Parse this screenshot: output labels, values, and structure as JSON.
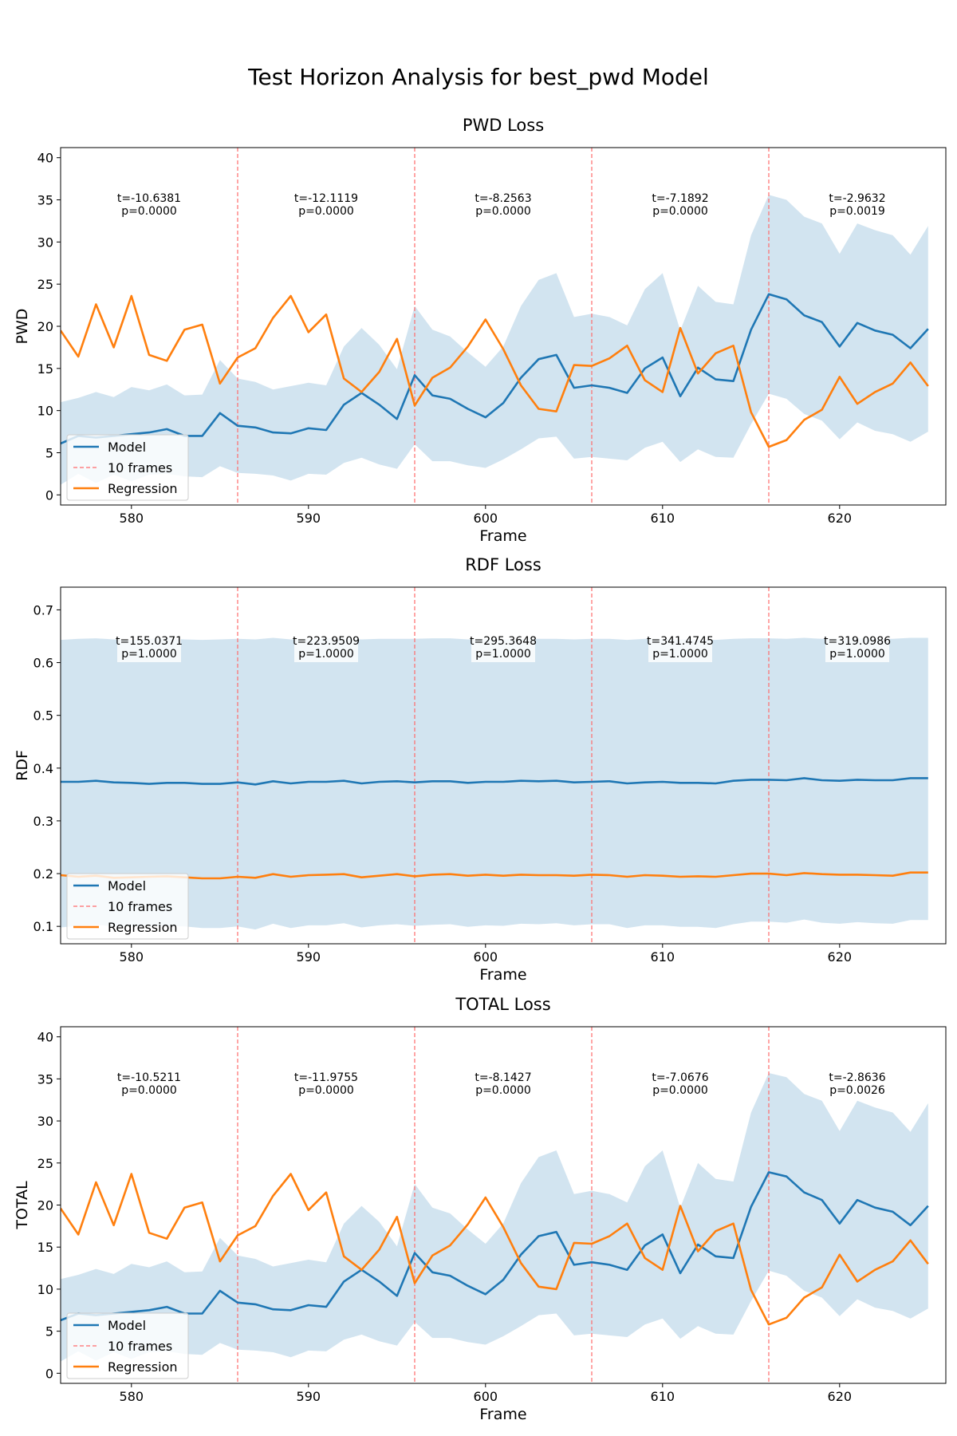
{
  "suptitle": "Test Horizon Analysis for best_pwd Model",
  "colors": {
    "model": "#1f77b4",
    "regression": "#ff7f0e",
    "band": "#1f77b4",
    "vline": "#ff6b6b"
  },
  "chart_data": [
    {
      "type": "line",
      "title": "PWD Loss",
      "xlabel": "Frame",
      "ylabel": "PWD",
      "xlim": [
        576,
        626
      ],
      "ylim": [
        -1.2,
        41.2
      ],
      "xticks": [
        580,
        590,
        600,
        610,
        620
      ],
      "yticks": [
        0,
        5,
        10,
        15,
        20,
        25,
        30,
        35,
        40
      ],
      "ytick_labels": [
        "0",
        "5",
        "10",
        "15",
        "20",
        "25",
        "30",
        "35",
        "40"
      ],
      "legend": [
        "Model",
        "10 frames",
        "Regression"
      ],
      "legend_loc": "lower left",
      "vlines": [
        586,
        596,
        606,
        616
      ],
      "annotations": [
        {
          "x": 581,
          "y": 34.2,
          "text": [
            "t=-10.6381",
            "p=0.0000"
          ]
        },
        {
          "x": 591,
          "y": 34.2,
          "text": [
            "t=-12.1119",
            "p=0.0000"
          ]
        },
        {
          "x": 601,
          "y": 34.2,
          "text": [
            "t=-8.2563",
            "p=0.0000"
          ]
        },
        {
          "x": 611,
          "y": 34.2,
          "text": [
            "t=-7.1892",
            "p=0.0000"
          ]
        },
        {
          "x": 621,
          "y": 34.2,
          "text": [
            "t=-2.9632",
            "p=0.0019"
          ]
        }
      ],
      "x": [
        576,
        577,
        578,
        579,
        580,
        581,
        582,
        583,
        584,
        585,
        586,
        587,
        588,
        589,
        590,
        591,
        592,
        593,
        594,
        595,
        596,
        597,
        598,
        599,
        600,
        601,
        602,
        603,
        604,
        605,
        606,
        607,
        608,
        609,
        610,
        611,
        612,
        613,
        614,
        615,
        616,
        617,
        618,
        619,
        620,
        621,
        622,
        623,
        624,
        625
      ],
      "series": [
        {
          "name": "Model",
          "values": [
            6.1,
            7.0,
            6.8,
            7.0,
            7.2,
            7.4,
            7.8,
            7.0,
            7.0,
            9.7,
            8.2,
            8.0,
            7.4,
            7.3,
            7.9,
            7.7,
            10.7,
            12.1,
            10.7,
            9.0,
            14.2,
            11.8,
            11.4,
            10.2,
            9.2,
            10.9,
            13.9,
            16.1,
            16.6,
            12.7,
            13.0,
            12.7,
            12.1,
            15.0,
            16.3,
            11.7,
            15.1,
            13.7,
            13.5,
            19.6,
            23.8,
            23.2,
            21.3,
            20.5,
            17.6,
            20.4,
            19.5,
            19.0,
            17.4,
            19.7
          ]
        },
        {
          "name": "Regression",
          "values": [
            19.5,
            16.4,
            22.6,
            17.5,
            23.6,
            16.6,
            15.9,
            19.6,
            20.2,
            13.2,
            16.3,
            17.4,
            21.0,
            23.6,
            19.3,
            21.4,
            13.8,
            12.2,
            14.6,
            18.5,
            10.6,
            13.9,
            15.1,
            17.6,
            20.8,
            17.3,
            13.0,
            10.2,
            9.9,
            15.4,
            15.3,
            16.2,
            17.7,
            13.6,
            12.2,
            19.8,
            14.4,
            16.8,
            17.7,
            9.8,
            5.7,
            6.5,
            8.9,
            10.1,
            14.0,
            10.8,
            12.2,
            13.2,
            15.7,
            12.9
          ]
        },
        {
          "name": "band_upper",
          "values": [
            11.0,
            11.5,
            12.2,
            11.6,
            12.8,
            12.4,
            13.1,
            11.8,
            11.9,
            16.0,
            13.8,
            13.4,
            12.5,
            12.9,
            13.3,
            13.0,
            17.6,
            19.8,
            17.8,
            14.9,
            22.4,
            19.6,
            18.8,
            16.9,
            15.2,
            17.6,
            22.4,
            25.5,
            26.3,
            21.1,
            21.5,
            21.1,
            20.1,
            24.4,
            26.3,
            19.5,
            24.8,
            22.9,
            22.6,
            30.8,
            35.6,
            35.0,
            33.0,
            32.2,
            28.6,
            32.2,
            31.4,
            30.8,
            28.5,
            31.9
          ]
        },
        {
          "name": "band_lower",
          "values": [
            1.2,
            2.5,
            1.4,
            2.4,
            1.6,
            2.4,
            2.5,
            2.2,
            2.1,
            3.4,
            2.6,
            2.5,
            2.3,
            1.7,
            2.5,
            2.4,
            3.8,
            4.4,
            3.6,
            3.1,
            6.0,
            4.0,
            4.0,
            3.5,
            3.2,
            4.2,
            5.4,
            6.7,
            6.9,
            4.3,
            4.5,
            4.3,
            4.1,
            5.6,
            6.3,
            3.9,
            5.4,
            4.5,
            4.4,
            8.4,
            12.0,
            11.4,
            9.6,
            8.8,
            6.6,
            8.6,
            7.6,
            7.2,
            6.3,
            7.5
          ]
        }
      ]
    },
    {
      "type": "line",
      "title": "RDF Loss",
      "xlabel": "Frame",
      "ylabel": "RDF",
      "xlim": [
        576,
        626
      ],
      "ylim": [
        0.067,
        0.743
      ],
      "xticks": [
        580,
        590,
        600,
        610,
        620
      ],
      "yticks": [
        0.1,
        0.2,
        0.3,
        0.4,
        0.5,
        0.6,
        0.7
      ],
      "ytick_labels": [
        "0.1",
        "0.2",
        "0.3",
        "0.4",
        "0.5",
        "0.6",
        "0.7"
      ],
      "legend": [
        "Model",
        "10 frames",
        "Regression"
      ],
      "legend_loc": "lower left",
      "vlines": [
        586,
        596,
        606,
        616
      ],
      "annotations": [
        {
          "x": 581,
          "y": 0.625,
          "text": [
            "t=155.0371",
            "p=1.0000"
          ],
          "boxed": true
        },
        {
          "x": 591,
          "y": 0.625,
          "text": [
            "t=223.9509",
            "p=1.0000"
          ],
          "boxed": true
        },
        {
          "x": 601,
          "y": 0.625,
          "text": [
            "t=295.3648",
            "p=1.0000"
          ],
          "boxed": true
        },
        {
          "x": 611,
          "y": 0.625,
          "text": [
            "t=341.4745",
            "p=1.0000"
          ],
          "boxed": true
        },
        {
          "x": 621,
          "y": 0.625,
          "text": [
            "t=319.0986",
            "p=1.0000"
          ],
          "boxed": true
        }
      ],
      "x": [
        576,
        577,
        578,
        579,
        580,
        581,
        582,
        583,
        584,
        585,
        586,
        587,
        588,
        589,
        590,
        591,
        592,
        593,
        594,
        595,
        596,
        597,
        598,
        599,
        600,
        601,
        602,
        603,
        604,
        605,
        606,
        607,
        608,
        609,
        610,
        611,
        612,
        613,
        614,
        615,
        616,
        617,
        618,
        619,
        620,
        621,
        622,
        623,
        624,
        625
      ],
      "series": [
        {
          "name": "Model",
          "values": [
            0.374,
            0.374,
            0.376,
            0.373,
            0.372,
            0.37,
            0.372,
            0.372,
            0.37,
            0.37,
            0.373,
            0.369,
            0.375,
            0.371,
            0.374,
            0.374,
            0.376,
            0.371,
            0.374,
            0.375,
            0.373,
            0.375,
            0.375,
            0.372,
            0.374,
            0.374,
            0.376,
            0.375,
            0.376,
            0.373,
            0.374,
            0.375,
            0.371,
            0.373,
            0.374,
            0.372,
            0.372,
            0.371,
            0.376,
            0.378,
            0.378,
            0.377,
            0.381,
            0.377,
            0.376,
            0.378,
            0.377,
            0.377,
            0.381,
            0.381
          ]
        },
        {
          "name": "Regression",
          "values": [
            0.197,
            0.194,
            0.196,
            0.192,
            0.193,
            0.194,
            0.195,
            0.193,
            0.191,
            0.191,
            0.194,
            0.192,
            0.199,
            0.194,
            0.197,
            0.198,
            0.199,
            0.193,
            0.196,
            0.199,
            0.195,
            0.198,
            0.199,
            0.196,
            0.198,
            0.196,
            0.198,
            0.197,
            0.197,
            0.196,
            0.198,
            0.197,
            0.194,
            0.197,
            0.196,
            0.194,
            0.195,
            0.194,
            0.197,
            0.2,
            0.2,
            0.197,
            0.201,
            0.199,
            0.198,
            0.198,
            0.197,
            0.196,
            0.202,
            0.202
          ]
        },
        {
          "name": "band_upper",
          "values": [
            0.643,
            0.645,
            0.646,
            0.644,
            0.643,
            0.645,
            0.646,
            0.644,
            0.643,
            0.644,
            0.645,
            0.644,
            0.647,
            0.644,
            0.645,
            0.646,
            0.646,
            0.644,
            0.645,
            0.645,
            0.645,
            0.646,
            0.646,
            0.644,
            0.645,
            0.644,
            0.645,
            0.645,
            0.645,
            0.644,
            0.645,
            0.645,
            0.643,
            0.645,
            0.645,
            0.644,
            0.644,
            0.643,
            0.645,
            0.646,
            0.646,
            0.645,
            0.647,
            0.645,
            0.645,
            0.646,
            0.645,
            0.645,
            0.647,
            0.647
          ]
        },
        {
          "name": "band_lower",
          "values": [
            0.098,
            0.101,
            0.103,
            0.1,
            0.1,
            0.101,
            0.101,
            0.1,
            0.097,
            0.097,
            0.1,
            0.094,
            0.105,
            0.097,
            0.102,
            0.102,
            0.106,
            0.098,
            0.102,
            0.104,
            0.101,
            0.103,
            0.104,
            0.099,
            0.102,
            0.101,
            0.105,
            0.104,
            0.106,
            0.102,
            0.104,
            0.104,
            0.097,
            0.102,
            0.102,
            0.099,
            0.099,
            0.097,
            0.104,
            0.109,
            0.109,
            0.107,
            0.113,
            0.107,
            0.105,
            0.108,
            0.106,
            0.105,
            0.112,
            0.112
          ]
        }
      ]
    },
    {
      "type": "line",
      "title": "TOTAL Loss",
      "xlabel": "Frame",
      "ylabel": "TOTAL",
      "xlim": [
        576,
        626
      ],
      "ylim": [
        -1.2,
        41.2
      ],
      "xticks": [
        580,
        590,
        600,
        610,
        620
      ],
      "yticks": [
        0,
        5,
        10,
        15,
        20,
        25,
        30,
        35,
        40
      ],
      "ytick_labels": [
        "0",
        "5",
        "10",
        "15",
        "20",
        "25",
        "30",
        "35",
        "40"
      ],
      "legend": [
        "Model",
        "10 frames",
        "Regression"
      ],
      "legend_loc": "lower left",
      "vlines": [
        586,
        596,
        606,
        616
      ],
      "annotations": [
        {
          "x": 581,
          "y": 34.2,
          "text": [
            "t=-10.5211",
            "p=0.0000"
          ]
        },
        {
          "x": 591,
          "y": 34.2,
          "text": [
            "t=-11.9755",
            "p=0.0000"
          ]
        },
        {
          "x": 601,
          "y": 34.2,
          "text": [
            "t=-8.1427",
            "p=0.0000"
          ]
        },
        {
          "x": 611,
          "y": 34.2,
          "text": [
            "t=-7.0676",
            "p=0.0000"
          ]
        },
        {
          "x": 621,
          "y": 34.2,
          "text": [
            "t=-2.8636",
            "p=0.0026"
          ]
        }
      ],
      "x": [
        576,
        577,
        578,
        579,
        580,
        581,
        582,
        583,
        584,
        585,
        586,
        587,
        588,
        589,
        590,
        591,
        592,
        593,
        594,
        595,
        596,
        597,
        598,
        599,
        600,
        601,
        602,
        603,
        604,
        605,
        606,
        607,
        608,
        609,
        610,
        611,
        612,
        613,
        614,
        615,
        616,
        617,
        618,
        619,
        620,
        621,
        622,
        623,
        624,
        625
      ],
      "series": [
        {
          "name": "Model",
          "values": [
            6.3,
            7.1,
            6.9,
            7.1,
            7.3,
            7.5,
            7.9,
            7.1,
            7.1,
            9.8,
            8.4,
            8.2,
            7.6,
            7.5,
            8.1,
            7.9,
            10.9,
            12.3,
            10.9,
            9.2,
            14.3,
            12.0,
            11.6,
            10.4,
            9.4,
            11.1,
            14.1,
            16.3,
            16.8,
            12.9,
            13.2,
            12.9,
            12.3,
            15.2,
            16.5,
            11.9,
            15.3,
            13.9,
            13.7,
            19.8,
            23.9,
            23.4,
            21.5,
            20.6,
            17.8,
            20.6,
            19.7,
            19.2,
            17.6,
            19.9
          ]
        },
        {
          "name": "Regression",
          "values": [
            19.6,
            16.5,
            22.7,
            17.6,
            23.7,
            16.7,
            16.0,
            19.7,
            20.3,
            13.3,
            16.4,
            17.5,
            21.1,
            23.7,
            19.4,
            21.5,
            13.9,
            12.3,
            14.7,
            18.6,
            10.7,
            14.0,
            15.2,
            17.7,
            20.9,
            17.4,
            13.1,
            10.3,
            10.0,
            15.5,
            15.4,
            16.3,
            17.8,
            13.7,
            12.3,
            19.9,
            14.5,
            16.9,
            17.8,
            9.9,
            5.8,
            6.6,
            9.0,
            10.2,
            14.1,
            10.9,
            12.3,
            13.3,
            15.8,
            13.0
          ]
        },
        {
          "name": "band_upper",
          "values": [
            11.2,
            11.7,
            12.4,
            11.8,
            13.0,
            12.6,
            13.3,
            12.0,
            12.1,
            16.1,
            14.0,
            13.6,
            12.7,
            13.1,
            13.5,
            13.2,
            17.8,
            19.9,
            18.0,
            15.1,
            22.5,
            19.7,
            19.0,
            17.1,
            15.4,
            17.8,
            22.6,
            25.7,
            26.5,
            21.3,
            21.7,
            21.3,
            20.3,
            24.6,
            26.5,
            19.7,
            25.0,
            23.1,
            22.8,
            31.0,
            35.7,
            35.2,
            33.2,
            32.4,
            28.8,
            32.4,
            31.6,
            31.0,
            28.7,
            32.1
          ]
        },
        {
          "name": "band_lower",
          "values": [
            1.4,
            2.6,
            1.5,
            2.5,
            1.7,
            2.5,
            2.6,
            2.3,
            2.2,
            3.6,
            2.8,
            2.7,
            2.5,
            1.9,
            2.7,
            2.6,
            4.0,
            4.6,
            3.8,
            3.3,
            6.1,
            4.2,
            4.2,
            3.7,
            3.4,
            4.4,
            5.6,
            6.9,
            7.1,
            4.5,
            4.7,
            4.5,
            4.3,
            5.8,
            6.5,
            4.1,
            5.6,
            4.7,
            4.6,
            8.6,
            12.2,
            11.6,
            9.8,
            9.0,
            6.8,
            8.8,
            7.8,
            7.4,
            6.5,
            7.7
          ]
        }
      ]
    }
  ]
}
